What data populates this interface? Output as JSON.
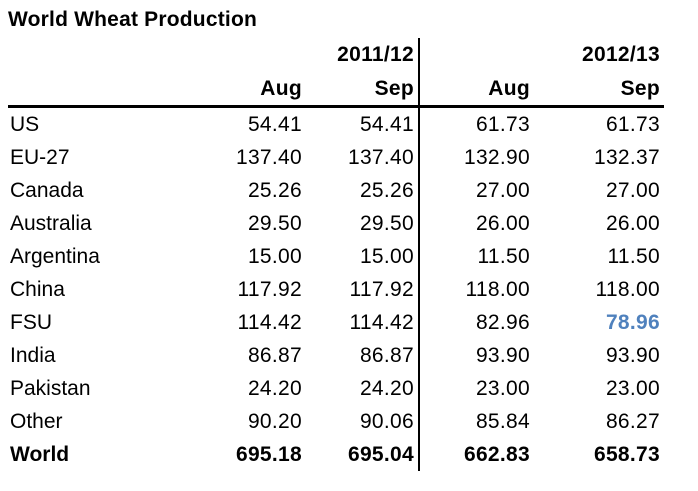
{
  "title": "World Wheat Production",
  "chart_data": {
    "type": "table",
    "title": "World Wheat Production",
    "column_groups": [
      "2011/12",
      "2012/13"
    ],
    "columns": [
      "Aug",
      "Sep",
      "Aug",
      "Sep"
    ],
    "rows": [
      {
        "label": "US",
        "values": [
          "54.41",
          "54.41",
          "61.73",
          "61.73"
        ]
      },
      {
        "label": "EU-27",
        "values": [
          "137.40",
          "137.40",
          "132.90",
          "132.37"
        ]
      },
      {
        "label": "Canada",
        "values": [
          "25.26",
          "25.26",
          "27.00",
          "27.00"
        ]
      },
      {
        "label": "Australia",
        "values": [
          "29.50",
          "29.50",
          "26.00",
          "26.00"
        ]
      },
      {
        "label": "Argentina",
        "values": [
          "15.00",
          "15.00",
          "11.50",
          "11.50"
        ]
      },
      {
        "label": "China",
        "values": [
          "117.92",
          "117.92",
          "118.00",
          "118.00"
        ]
      },
      {
        "label": "FSU",
        "values": [
          "114.42",
          "114.42",
          "82.96",
          "78.96"
        ]
      },
      {
        "label": "India",
        "values": [
          "86.87",
          "86.87",
          "93.90",
          "93.90"
        ]
      },
      {
        "label": "Pakistan",
        "values": [
          "24.20",
          "24.20",
          "23.00",
          "23.00"
        ]
      },
      {
        "label": "Other",
        "values": [
          "90.20",
          "90.06",
          "85.84",
          "86.27"
        ]
      },
      {
        "label": "World",
        "values": [
          "695.18",
          "695.04",
          "662.83",
          "658.73"
        ]
      }
    ],
    "bold_rows": [
      "World"
    ],
    "highlighted_cell": {
      "row": "FSU",
      "column_group": "2012/13",
      "column": "Sep",
      "value": "78.96",
      "color": "#4f81bd"
    }
  },
  "colors": {
    "background": "#ffffff",
    "text": "#000000",
    "lines": "#000000",
    "highlight": "#4f81bd"
  }
}
